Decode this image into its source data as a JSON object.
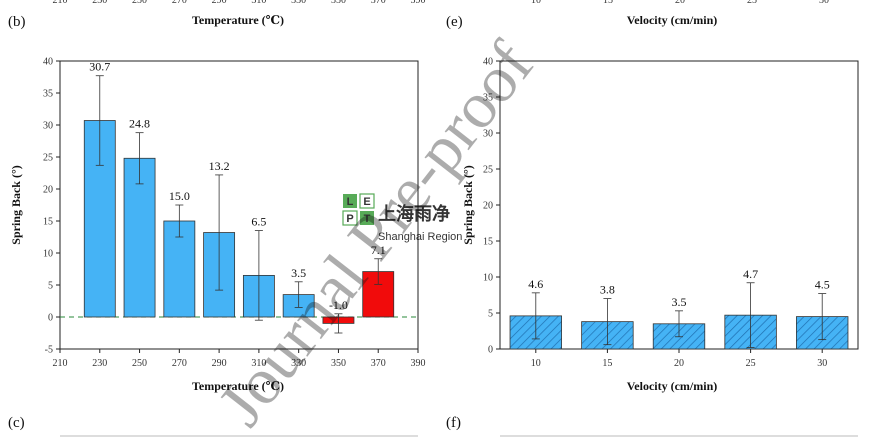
{
  "top_partial": {
    "left_xlabel": "Temperature (℃)",
    "right_xlabel": "Velocity (cm/min)",
    "left_ticks": [
      "210",
      "230",
      "250",
      "270",
      "290",
      "310",
      "330",
      "350",
      "370",
      "390"
    ],
    "right_ticks": [
      "10",
      "15",
      "20",
      "25",
      "30"
    ]
  },
  "panels": {
    "b": "(b)",
    "e": "(e)",
    "c": "(c)",
    "f": "(f)"
  },
  "watermark": {
    "logo_letters": [
      "L",
      "E",
      "P",
      "T"
    ],
    "cn_text": "上海雨净",
    "en_text": "Shanghai Region",
    "diagonal": "Journal Pre-proof"
  },
  "chart_data": [
    {
      "type": "bar",
      "panel": "(b)",
      "xlabel": "Temperature (℃)",
      "ylabel": "Spring Back (°)",
      "xlim": [
        210,
        390
      ],
      "ylim": [
        -5,
        40
      ],
      "xticks": [
        210,
        230,
        250,
        270,
        290,
        310,
        330,
        350,
        370,
        390
      ],
      "yticks": [
        -5,
        0,
        5,
        10,
        15,
        20,
        25,
        30,
        35,
        40
      ],
      "grid": false,
      "reference_line": 0,
      "x": [
        230,
        250,
        270,
        290,
        310,
        330,
        350,
        370
      ],
      "values": [
        30.7,
        24.8,
        15.0,
        13.2,
        6.5,
        3.5,
        -1.0,
        7.1
      ],
      "errors": [
        7.0,
        4.0,
        2.5,
        9.0,
        7.0,
        2.0,
        1.5,
        2.0
      ],
      "labels": [
        "30.7",
        "24.8",
        "15.0",
        "13.2",
        "6.5",
        "3.5",
        "-1.0",
        "7.1"
      ],
      "colors": [
        "#45b3f5",
        "#45b3f5",
        "#45b3f5",
        "#45b3f5",
        "#45b3f5",
        "#45b3f5",
        "#f10b0b",
        "#f10b0b"
      ]
    },
    {
      "type": "bar",
      "panel": "(e)",
      "xlabel": "Velocity (cm/min)",
      "ylabel": "Spring Back (°)",
      "ylim": [
        0,
        40
      ],
      "yticks": [
        0,
        5,
        10,
        15,
        20,
        25,
        30,
        35,
        40
      ],
      "grid": false,
      "categories": [
        "10",
        "15",
        "20",
        "25",
        "30"
      ],
      "values": [
        4.6,
        3.8,
        3.5,
        4.7,
        4.5
      ],
      "errors": [
        3.2,
        3.2,
        1.8,
        4.5,
        3.2
      ],
      "labels": [
        "4.6",
        "3.8",
        "3.5",
        "4.7",
        "4.5"
      ],
      "color": "#45b3f5",
      "hatch": true
    }
  ]
}
